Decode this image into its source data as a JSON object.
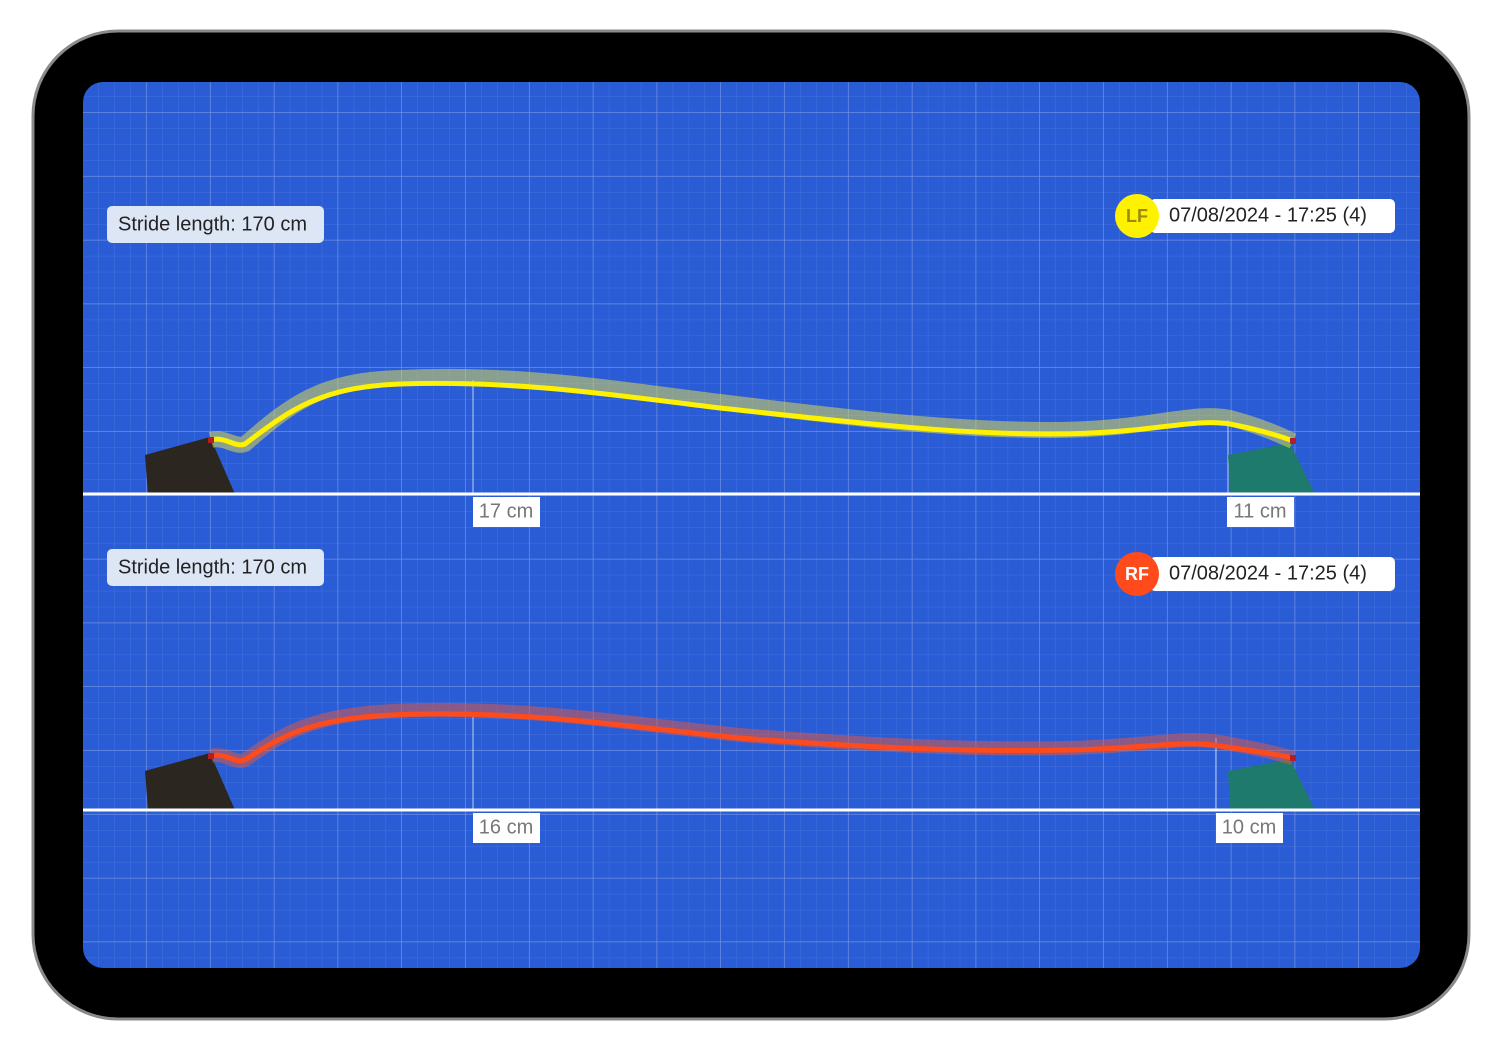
{
  "panels": [
    {
      "stride_label": "Stride length: 170 cm",
      "badge": "LF",
      "timestamp": "07/08/2024 - 17:25 (4)",
      "left_measure": "17 cm",
      "right_measure": "11 cm"
    },
    {
      "stride_label": "Stride length: 170 cm",
      "badge": "RF",
      "timestamp": "07/08/2024 - 17:25 (4)",
      "left_measure": "16 cm",
      "right_measure": "10 cm"
    }
  ]
}
